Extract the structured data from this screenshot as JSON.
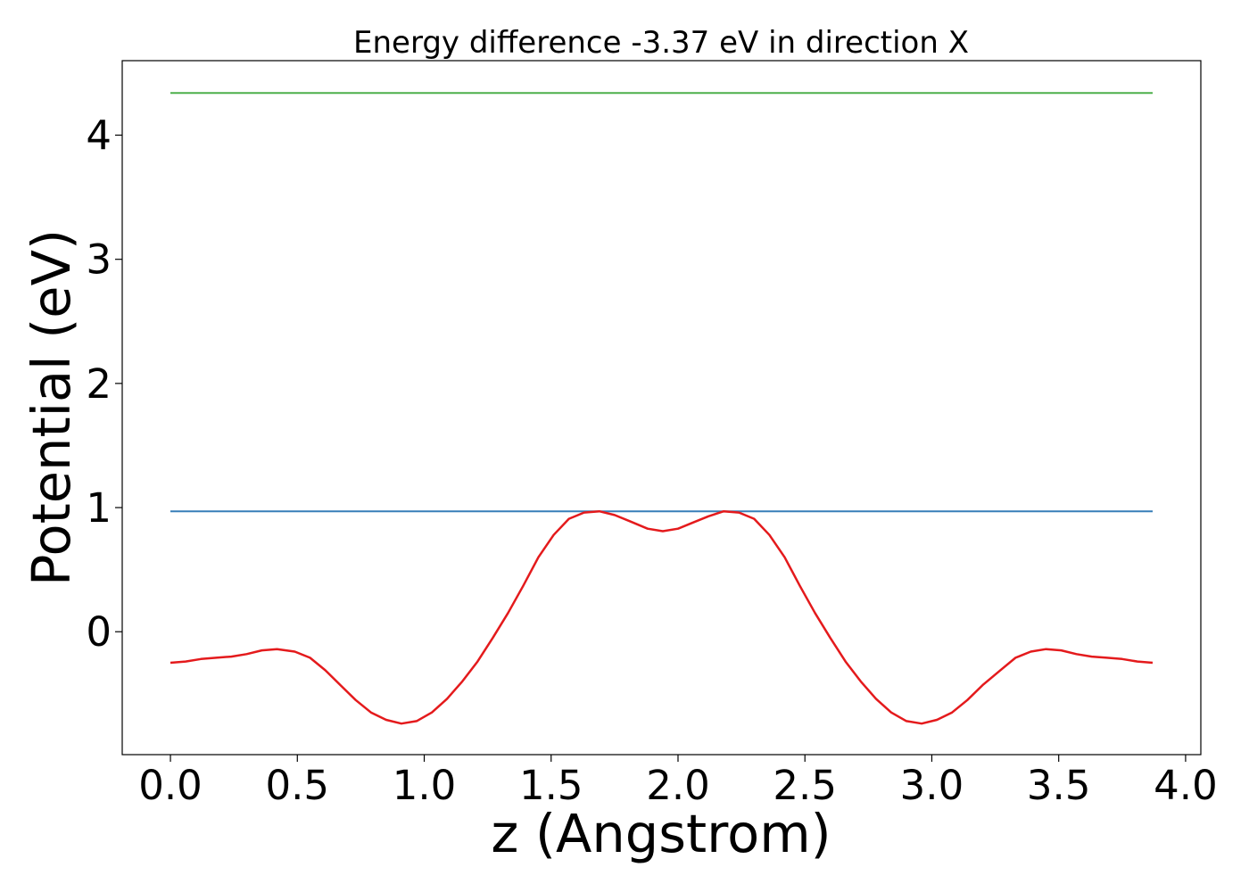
{
  "chart_data": {
    "type": "line",
    "title": "Energy difference -3.37 eV in direction X",
    "xlabel": "z (Angstrom)",
    "ylabel": "Potential (eV)",
    "xlim": [
      -0.19,
      4.06
    ],
    "ylim": [
      -0.99,
      4.6
    ],
    "xticks": [
      0.0,
      0.5,
      1.0,
      1.5,
      2.0,
      2.5,
      3.0,
      3.5,
      4.0
    ],
    "xtick_labels": [
      "0.0",
      "0.5",
      "1.0",
      "1.5",
      "2.0",
      "2.5",
      "3.0",
      "3.5",
      "4.0"
    ],
    "yticks": [
      0,
      1,
      2,
      3,
      4
    ],
    "ytick_labels": [
      "0",
      "1",
      "2",
      "3",
      "4"
    ],
    "grid": false,
    "series": [
      {
        "color": "#e41a1c",
        "x": [
          0.0,
          0.06,
          0.12,
          0.18,
          0.24,
          0.3,
          0.36,
          0.42,
          0.49,
          0.55,
          0.61,
          0.67,
          0.73,
          0.79,
          0.85,
          0.91,
          0.97,
          1.03,
          1.09,
          1.15,
          1.21,
          1.27,
          1.33,
          1.39,
          1.45,
          1.51,
          1.57,
          1.63,
          1.69,
          1.75,
          1.81,
          1.88,
          1.94,
          2.0,
          2.06,
          2.12,
          2.18,
          2.24,
          2.3,
          2.36,
          2.42,
          2.48,
          2.54,
          2.6,
          2.66,
          2.72,
          2.78,
          2.84,
          2.9,
          2.96,
          3.02,
          3.08,
          3.14,
          3.2,
          3.27,
          3.33,
          3.39,
          3.45,
          3.51,
          3.57,
          3.63,
          3.69,
          3.75,
          3.81,
          3.87
        ],
        "y": [
          -0.25,
          -0.24,
          -0.22,
          -0.21,
          -0.2,
          -0.18,
          -0.15,
          -0.14,
          -0.16,
          -0.21,
          -0.31,
          -0.43,
          -0.55,
          -0.65,
          -0.71,
          -0.74,
          -0.72,
          -0.65,
          -0.54,
          -0.4,
          -0.24,
          -0.05,
          0.15,
          0.37,
          0.6,
          0.78,
          0.91,
          0.96,
          0.97,
          0.94,
          0.89,
          0.83,
          0.81,
          0.83,
          0.88,
          0.93,
          0.97,
          0.96,
          0.91,
          0.78,
          0.6,
          0.37,
          0.15,
          -0.05,
          -0.24,
          -0.4,
          -0.54,
          -0.65,
          -0.72,
          -0.74,
          -0.71,
          -0.65,
          -0.55,
          -0.43,
          -0.31,
          -0.21,
          -0.16,
          -0.14,
          -0.15,
          -0.18,
          -0.2,
          -0.21,
          -0.22,
          -0.24,
          -0.25
        ]
      },
      {
        "color": "#377eb8",
        "x": [
          0.0,
          3.87
        ],
        "y": [
          0.97,
          0.97
        ]
      },
      {
        "color": "#4daf4a",
        "x": [
          0.0,
          3.87
        ],
        "y": [
          4.34,
          4.34
        ]
      }
    ]
  }
}
